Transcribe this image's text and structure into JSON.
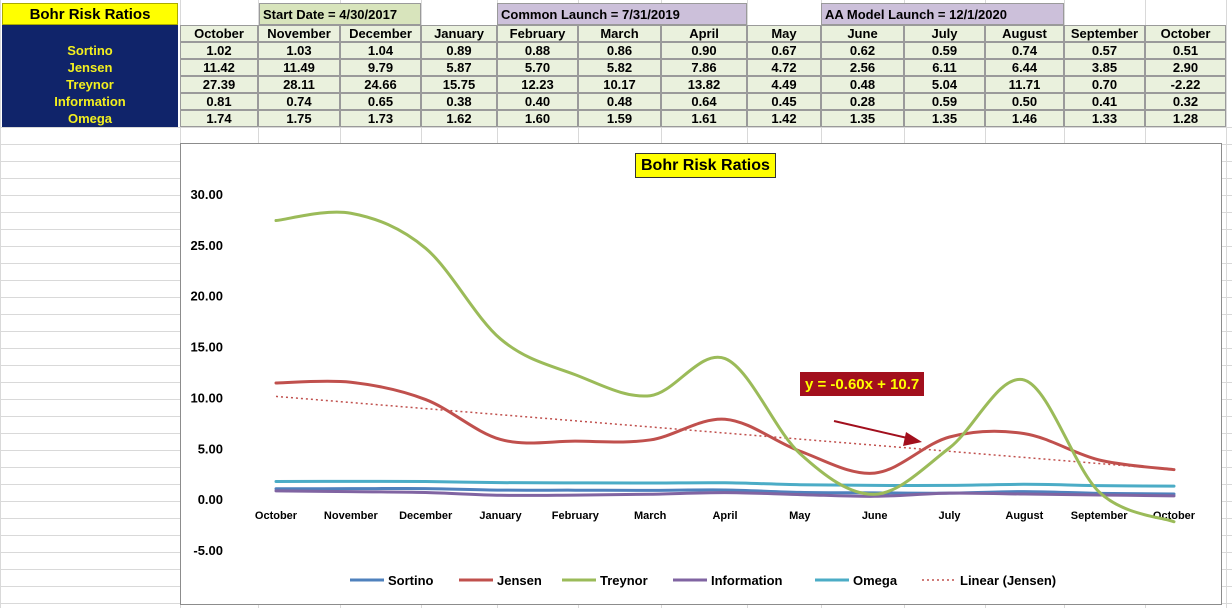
{
  "sheet": {
    "title": "Bohr Risk Ratios",
    "start_date": "Start Date = 4/30/2017",
    "common_launch": "Common Launch = 7/31/2019",
    "aa_model_launch": "AA Model Launch = 12/1/2020",
    "launch_box_color": "#ccc0da",
    "start_box_color": "#d8e4bc",
    "months": [
      "October",
      "November",
      "December",
      "January",
      "February",
      "March",
      "April",
      "May",
      "June",
      "July",
      "August",
      "September",
      "October"
    ],
    "rows": [
      {
        "label": "Sortino",
        "values": [
          "1.02",
          "1.03",
          "1.04",
          "0.89",
          "0.88",
          "0.86",
          "0.90",
          "0.67",
          "0.62",
          "0.59",
          "0.74",
          "0.57",
          "0.51"
        ]
      },
      {
        "label": "Jensen",
        "values": [
          "11.42",
          "11.49",
          "9.79",
          "5.87",
          "5.70",
          "5.82",
          "7.86",
          "4.72",
          "2.56",
          "6.11",
          "6.44",
          "3.85",
          "2.90"
        ]
      },
      {
        "label": "Treynor",
        "values": [
          "27.39",
          "28.11",
          "24.66",
          "15.75",
          "12.23",
          "10.17",
          "13.82",
          "4.49",
          "0.48",
          "5.04",
          "11.71",
          "0.70",
          "-2.22"
        ]
      },
      {
        "label": "Information",
        "values": [
          "0.81",
          "0.74",
          "0.65",
          "0.38",
          "0.40",
          "0.48",
          "0.64",
          "0.45",
          "0.28",
          "0.59",
          "0.50",
          "0.41",
          "0.32"
        ]
      },
      {
        "label": "Omega",
        "values": [
          "1.74",
          "1.75",
          "1.73",
          "1.62",
          "1.60",
          "1.59",
          "1.61",
          "1.42",
          "1.35",
          "1.35",
          "1.46",
          "1.33",
          "1.28"
        ]
      }
    ]
  },
  "chart_data": {
    "type": "line",
    "title": "Bohr Risk Ratios",
    "categories": [
      "October",
      "November",
      "December",
      "January",
      "February",
      "March",
      "April",
      "May",
      "June",
      "July",
      "August",
      "September",
      "October"
    ],
    "ylim": [
      -5,
      30
    ],
    "yticks": [
      "30.00",
      "25.00",
      "20.00",
      "15.00",
      "10.00",
      "5.00",
      "0.00",
      "-5.00"
    ],
    "ytick_values": [
      30,
      25,
      20,
      15,
      10,
      5,
      0,
      -5
    ],
    "grid": false,
    "legend_position": "bottom",
    "series": [
      {
        "name": "Sortino",
        "color": "#4f81bd",
        "values": [
          1.02,
          1.03,
          1.04,
          0.89,
          0.88,
          0.86,
          0.9,
          0.67,
          0.62,
          0.59,
          0.74,
          0.57,
          0.51
        ]
      },
      {
        "name": "Jensen",
        "color": "#c0504d",
        "values": [
          11.42,
          11.49,
          9.79,
          5.87,
          5.7,
          5.82,
          7.86,
          4.72,
          2.56,
          6.11,
          6.44,
          3.85,
          2.9
        ]
      },
      {
        "name": "Treynor",
        "color": "#9bbb59",
        "values": [
          27.39,
          28.11,
          24.66,
          15.75,
          12.23,
          10.17,
          13.82,
          4.49,
          0.48,
          5.04,
          11.71,
          0.7,
          -2.22
        ]
      },
      {
        "name": "Information",
        "color": "#8064a2",
        "values": [
          0.81,
          0.74,
          0.65,
          0.38,
          0.4,
          0.48,
          0.64,
          0.45,
          0.28,
          0.59,
          0.5,
          0.41,
          0.32
        ]
      },
      {
        "name": "Omega",
        "color": "#4bacc6",
        "values": [
          1.74,
          1.75,
          1.73,
          1.62,
          1.6,
          1.59,
          1.61,
          1.42,
          1.35,
          1.35,
          1.46,
          1.33,
          1.28
        ]
      }
    ],
    "trendline": {
      "name": "Linear (Jensen)",
      "color": "#c0504d",
      "slope": -0.6,
      "intercept": 10.7
    },
    "annotation": {
      "text": "y = -0.60x + 10.7",
      "box_color": "#a20f1d",
      "text_color": "#ffff00"
    }
  }
}
